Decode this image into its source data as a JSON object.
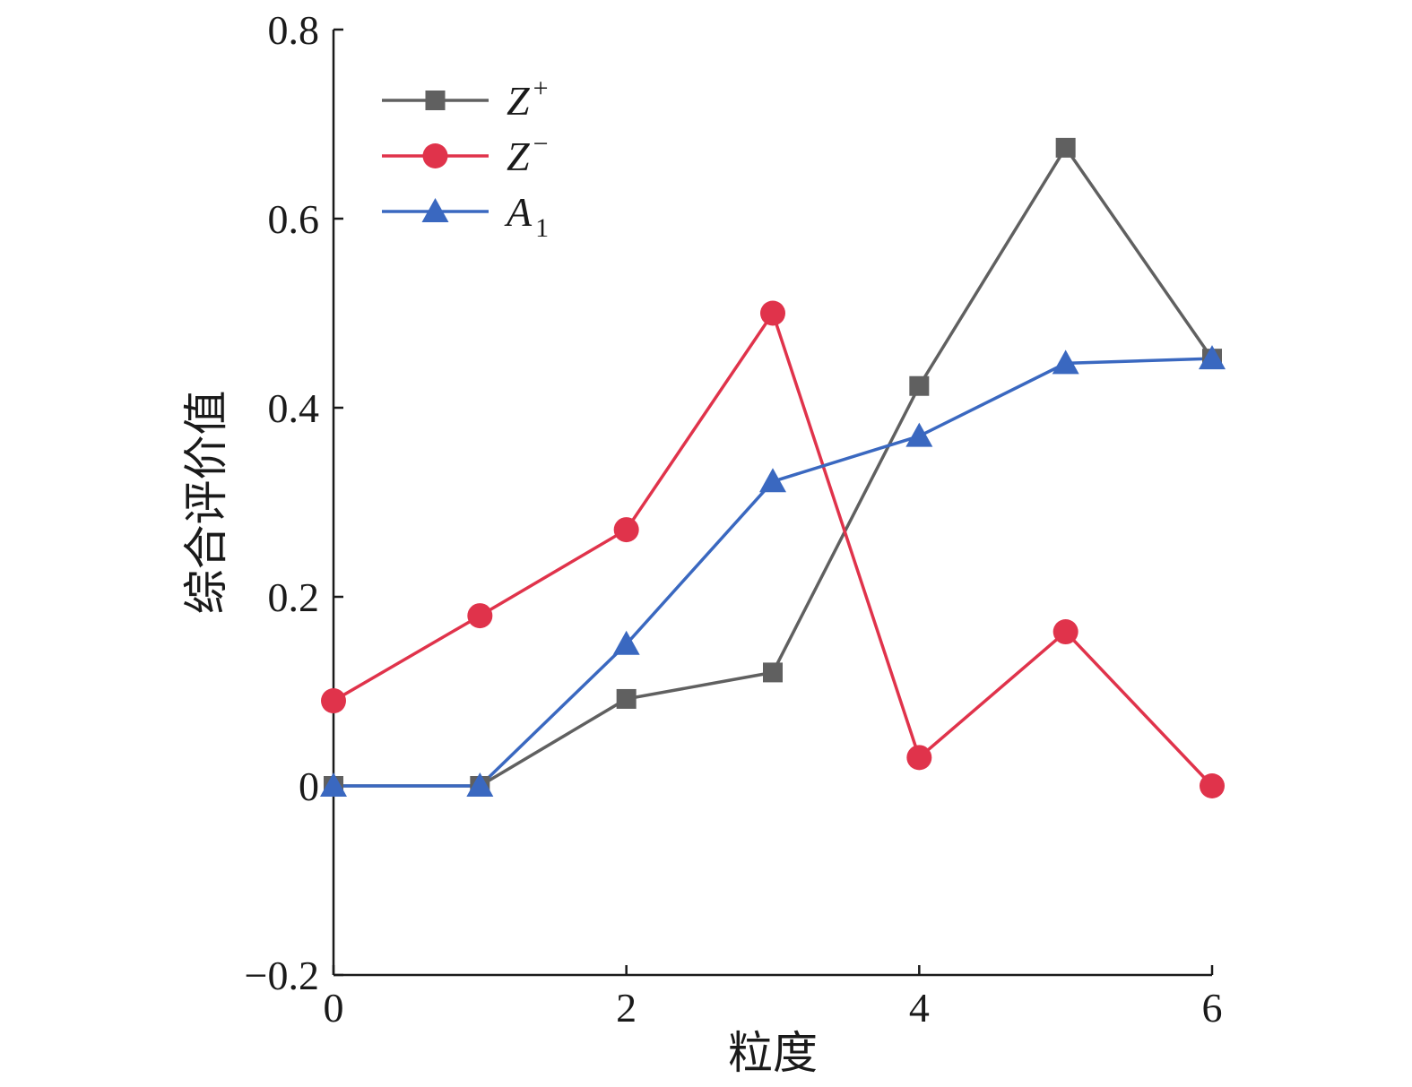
{
  "chart_data": {
    "type": "line",
    "xlabel": "粒度",
    "ylabel": "综合评价值",
    "xlim": [
      0,
      6
    ],
    "ylim": [
      -0.2,
      0.8
    ],
    "x_ticks": [
      0,
      2,
      4,
      6
    ],
    "x_tick_labels": [
      "0",
      "2",
      "4",
      "6"
    ],
    "y_ticks": [
      -0.2,
      0,
      0.2,
      0.4,
      0.6,
      0.8
    ],
    "y_tick_labels": [
      "−0.2",
      "0",
      "0.2",
      "0.4",
      "0.6",
      "0.8"
    ],
    "grid": false,
    "legend_position": "top-left",
    "x": [
      0,
      1,
      2,
      3,
      4,
      5,
      6
    ],
    "series": [
      {
        "name": "Z+",
        "label_base": "Z",
        "label_sup": "+",
        "label_sub": "",
        "marker": "square",
        "color": "#606060",
        "values": [
          0.0,
          0.0,
          0.092,
          0.12,
          0.423,
          0.675,
          0.452
        ]
      },
      {
        "name": "Z−",
        "label_base": "Z",
        "label_sup": "−",
        "label_sub": "",
        "marker": "circle",
        "color": "#e0334b",
        "values": [
          0.09,
          0.18,
          0.271,
          0.5,
          0.03,
          0.163,
          0.0
        ]
      },
      {
        "name": "A1",
        "label_base": "A",
        "label_sup": "",
        "label_sub": "1",
        "marker": "triangle",
        "color": "#3a68c0",
        "values": [
          0.0,
          0.0,
          0.15,
          0.322,
          0.37,
          0.447,
          0.452
        ]
      }
    ]
  }
}
